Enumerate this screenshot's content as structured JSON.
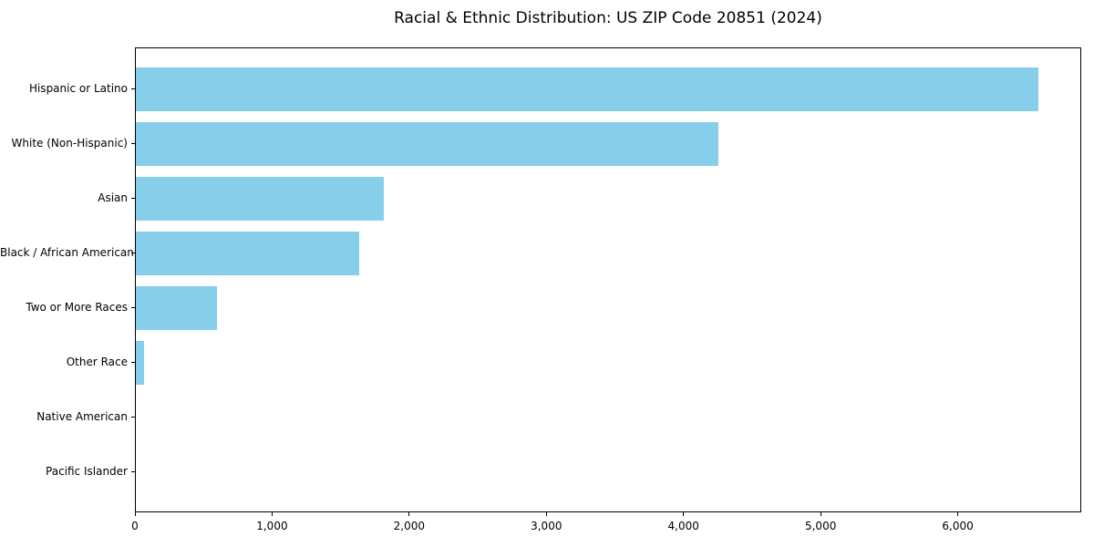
{
  "title": "Racial & Ethnic Distribution: US ZIP Code 20851 (2024)",
  "colors": {
    "bar": "#87CEEB",
    "background": "#ffffff",
    "spine": "#000000",
    "text": "#000000"
  },
  "chart_data": {
    "type": "bar",
    "orientation": "horizontal",
    "title": "Racial & Ethnic Distribution: US ZIP Code 20851 (2024)",
    "categories": [
      "Hispanic or Latino",
      "White (Non-Hispanic)",
      "Asian",
      "Black / African American",
      "Two or More Races",
      "Other Race",
      "Native American",
      "Pacific Islander"
    ],
    "values": [
      6580,
      4250,
      1810,
      1630,
      590,
      60,
      0,
      0
    ],
    "xlabel": "",
    "ylabel": "",
    "xlim": [
      0,
      6900
    ],
    "xticks": [
      0,
      1000,
      2000,
      3000,
      4000,
      5000,
      6000
    ],
    "xtick_labels": [
      "0",
      "1,000",
      "2,000",
      "3,000",
      "4,000",
      "5,000",
      "6,000"
    ],
    "bar_color": "#87CEEB",
    "grid": false,
    "legend": null
  }
}
